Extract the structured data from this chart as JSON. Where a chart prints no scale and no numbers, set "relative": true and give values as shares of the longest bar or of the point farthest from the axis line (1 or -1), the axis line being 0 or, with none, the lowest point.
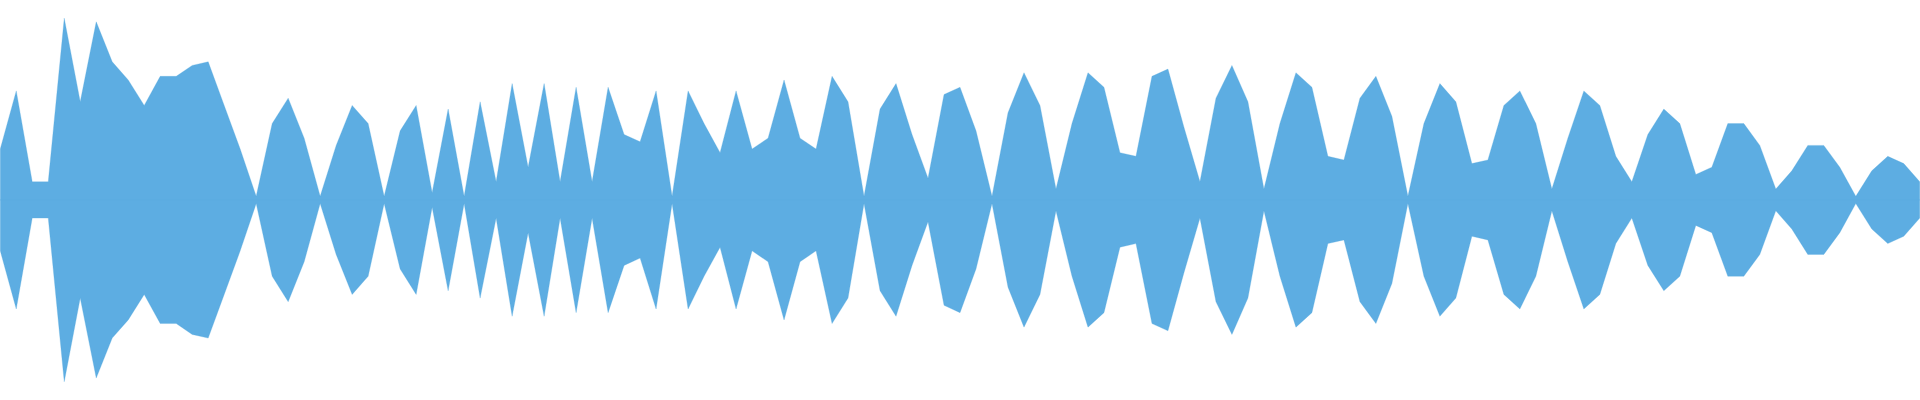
{
  "chart_data": {
    "type": "area",
    "relative": true,
    "categories": [
      null,
      null,
      null,
      null,
      null,
      null,
      null,
      null,
      null,
      null,
      null,
      null,
      null,
      null,
      null,
      null,
      null,
      null,
      null,
      null,
      null,
      null,
      null,
      null,
      null,
      null,
      null,
      null,
      null,
      null,
      null,
      null,
      null,
      null,
      null,
      null,
      null,
      null,
      null,
      null,
      null,
      null,
      null,
      null,
      null,
      null,
      null,
      null,
      null,
      null,
      null,
      null,
      null,
      null,
      null,
      null,
      null,
      null,
      null,
      null,
      null,
      null,
      null,
      null,
      null,
      null,
      null,
      null,
      null,
      null,
      null,
      null,
      null,
      null,
      null,
      null,
      null,
      null,
      null,
      null,
      null,
      null,
      null,
      null,
      null,
      null,
      null,
      null,
      null,
      null,
      null,
      null,
      null,
      null,
      null,
      null,
      null,
      null,
      null,
      null,
      null,
      null,
      null,
      null,
      null,
      null,
      null,
      null,
      null,
      null,
      null,
      null,
      null,
      null,
      null,
      null,
      null,
      null,
      null,
      null,
      null
    ],
    "series": [
      {
        "color": "#5dade2",
        "values": [
          0.28,
          0.6,
          0.1,
          0.1,
          1.0,
          0.54,
          0.98,
          0.76,
          0.66,
          0.52,
          0.68,
          0.68,
          0.74,
          0.76,
          0.52,
          0.28,
          0.02,
          0.42,
          0.56,
          0.34,
          0.02,
          0.3,
          0.52,
          0.42,
          0.02,
          0.38,
          0.52,
          0.04,
          0.5,
          0.02,
          0.54,
          0.1,
          0.64,
          0.18,
          0.64,
          0.1,
          0.62,
          0.1,
          0.62,
          0.36,
          0.32,
          0.6,
          0.02,
          0.6,
          0.42,
          0.26,
          0.6,
          0.28,
          0.34,
          0.66,
          0.34,
          0.28,
          0.68,
          0.54,
          0.02,
          0.5,
          0.64,
          0.36,
          0.12,
          0.58,
          0.62,
          0.38,
          0.02,
          0.48,
          0.7,
          0.52,
          0.06,
          0.42,
          0.7,
          0.62,
          0.26,
          0.24,
          0.68,
          0.72,
          0.4,
          0.1,
          0.56,
          0.74,
          0.54,
          0.06,
          0.42,
          0.7,
          0.62,
          0.24,
          0.22,
          0.56,
          0.68,
          0.46,
          0.02,
          0.42,
          0.64,
          0.54,
          0.2,
          0.22,
          0.52,
          0.6,
          0.42,
          0.06,
          0.34,
          0.6,
          0.52,
          0.24,
          0.1,
          0.36,
          0.5,
          0.42,
          0.14,
          0.18,
          0.42,
          0.42,
          0.3,
          0.06,
          0.16,
          0.3,
          0.3,
          0.18,
          0.02,
          0.16,
          0.24,
          0.2,
          0.1
        ]
      },
      {
        "color": "#5dade2",
        "values": [
          -0.28,
          -0.6,
          -0.1,
          -0.1,
          -1.0,
          -0.54,
          -0.98,
          -0.76,
          -0.66,
          -0.52,
          -0.68,
          -0.68,
          -0.74,
          -0.76,
          -0.52,
          -0.28,
          -0.02,
          -0.42,
          -0.56,
          -0.34,
          -0.02,
          -0.3,
          -0.52,
          -0.42,
          -0.02,
          -0.38,
          -0.52,
          -0.04,
          -0.5,
          -0.02,
          -0.54,
          -0.1,
          -0.64,
          -0.18,
          -0.64,
          -0.1,
          -0.62,
          -0.1,
          -0.62,
          -0.36,
          -0.32,
          -0.6,
          -0.02,
          -0.6,
          -0.42,
          -0.26,
          -0.6,
          -0.28,
          -0.34,
          -0.66,
          -0.34,
          -0.28,
          -0.68,
          -0.54,
          -0.02,
          -0.5,
          -0.64,
          -0.36,
          -0.12,
          -0.58,
          -0.62,
          -0.38,
          -0.02,
          -0.48,
          -0.7,
          -0.52,
          -0.06,
          -0.42,
          -0.7,
          -0.62,
          -0.26,
          -0.24,
          -0.68,
          -0.72,
          -0.4,
          -0.1,
          -0.56,
          -0.74,
          -0.54,
          -0.06,
          -0.42,
          -0.7,
          -0.62,
          -0.24,
          -0.22,
          -0.56,
          -0.68,
          -0.46,
          -0.02,
          -0.42,
          -0.64,
          -0.54,
          -0.2,
          -0.22,
          -0.52,
          -0.6,
          -0.42,
          -0.06,
          -0.34,
          -0.6,
          -0.52,
          -0.24,
          -0.1,
          -0.36,
          -0.5,
          -0.42,
          -0.14,
          -0.18,
          -0.42,
          -0.42,
          -0.3,
          -0.06,
          -0.16,
          -0.3,
          -0.3,
          -0.18,
          -0.02,
          -0.16,
          -0.24,
          -0.2,
          -0.1
        ]
      }
    ]
  }
}
